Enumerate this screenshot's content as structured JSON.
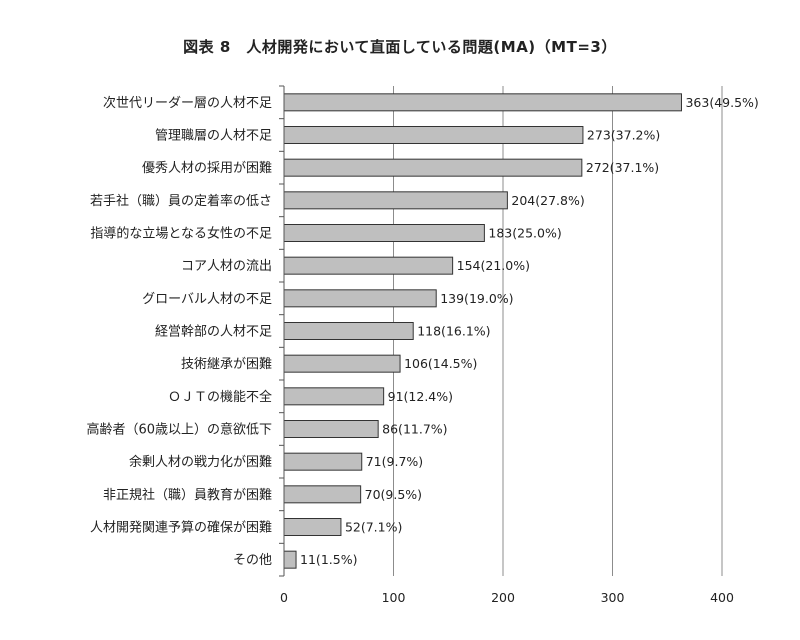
{
  "chart_data": {
    "type": "bar",
    "orientation": "horizontal",
    "title": "図表 8　人材開発において直面している問題(MA)（MT=3）",
    "xlabel": "",
    "ylabel": "",
    "xlim": [
      0,
      400
    ],
    "xticks": [
      0,
      100,
      200,
      300,
      400
    ],
    "grid": "vertical",
    "bar_color": "#bfbfbf",
    "categories": [
      "次世代リーダー層の人材不足",
      "管理職層の人材不足",
      "優秀人材の採用が困難",
      "若手社（職）員の定着率の低さ",
      "指導的な立場となる女性の不足",
      "コア人材の流出",
      "グローバル人材の不足",
      "経営幹部の人材不足",
      "技術継承が困難",
      "ＯＪＴの機能不全",
      "高齢者（60歳以上）の意欲低下",
      "余剰人材の戦力化が困難",
      "非正規社（職）員教育が困難",
      "人材開発関連予算の確保が困難",
      "その他"
    ],
    "values": [
      363,
      273,
      272,
      204,
      183,
      154,
      139,
      118,
      106,
      91,
      86,
      71,
      70,
      52,
      11
    ],
    "data_labels": [
      "363(49.5%)",
      "273(37.2%)",
      "272(37.1%)",
      "204(27.8%)",
      "183(25.0%)",
      "154(21.0%)",
      "139(19.0%)",
      "118(16.1%)",
      "106(14.5%)",
      "91(12.4%)",
      "86(11.7%)",
      "71(9.7%)",
      "70(9.5%)",
      "52(7.1%)",
      "11(1.5%)"
    ]
  }
}
